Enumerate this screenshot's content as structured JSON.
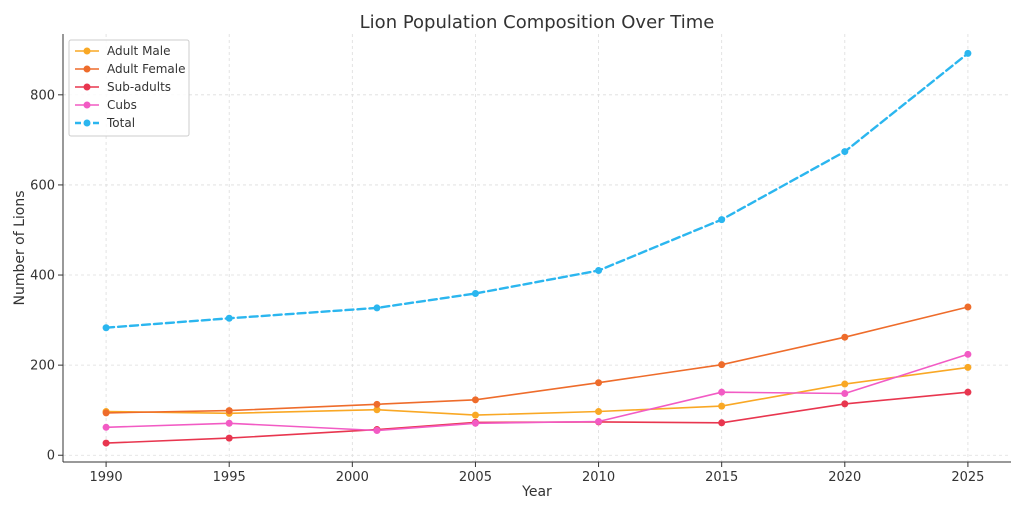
{
  "chart_data": {
    "type": "line",
    "title": "Lion Population Composition Over Time",
    "xlabel": "Year",
    "ylabel": "Number of Lions",
    "x": [
      1990,
      1995,
      2001,
      2005,
      2010,
      2015,
      2020,
      2025
    ],
    "x_ticks": [
      1990,
      1995,
      2000,
      2005,
      2010,
      2015,
      2020,
      2025
    ],
    "y_ticks": [
      0,
      200,
      400,
      600,
      800
    ],
    "xlim": [
      1988.25,
      2026.75
    ],
    "ylim": [
      -15,
      935
    ],
    "grid": true,
    "legend_position": "top-left",
    "series": [
      {
        "name": "Adult Male",
        "color": "#f9a825",
        "dashed": false,
        "values": [
          97,
          93,
          101,
          89,
          97,
          109,
          158,
          195
        ]
      },
      {
        "name": "Adult Female",
        "color": "#ee6c2b",
        "dashed": false,
        "values": [
          94,
          99,
          113,
          123,
          161,
          201,
          262,
          329
        ]
      },
      {
        "name": "Sub-adults",
        "color": "#e8364f",
        "dashed": false,
        "values": [
          27,
          38,
          57,
          73,
          74,
          72,
          114,
          140
        ]
      },
      {
        "name": "Cubs",
        "color": "#f25bc4",
        "dashed": false,
        "values": [
          62,
          71,
          55,
          71,
          75,
          140,
          137,
          224
        ]
      },
      {
        "name": "Total",
        "color": "#2bb6ef",
        "dashed": true,
        "values": [
          283,
          304,
          327,
          359,
          410,
          523,
          674,
          892
        ]
      }
    ]
  }
}
